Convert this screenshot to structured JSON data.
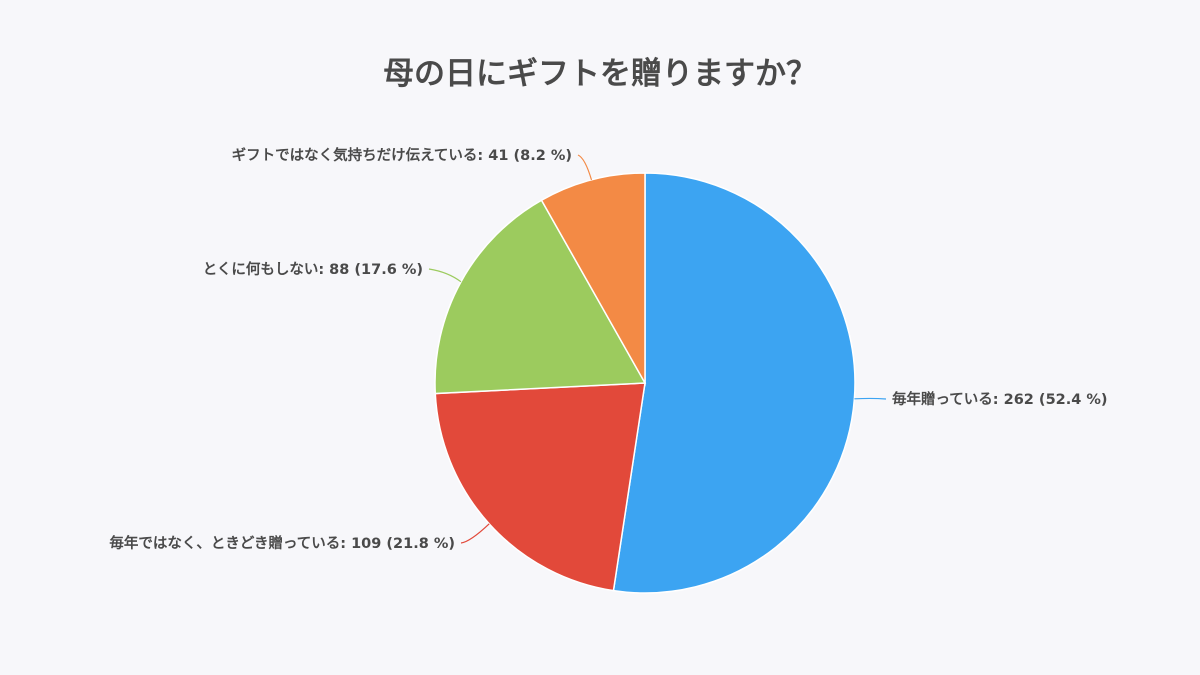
{
  "chart_data": {
    "type": "pie",
    "title": "母の日にギフトを贈りますか？",
    "start_angle_deg": 0,
    "direction": "clockwise",
    "slices": [
      {
        "label": "毎年贈っている: 262 (52.4 %)",
        "category": "毎年贈っている",
        "value": 262,
        "percent": 52.4,
        "color": "#3ca4f2"
      },
      {
        "label": "毎年ではなく、ときどき贈っている: 109 (21.8 %)",
        "category": "毎年ではなく、ときどき贈っている",
        "value": 109,
        "percent": 21.8,
        "color": "#e2493a"
      },
      {
        "label": "とくに何もしない: 88 (17.6 %)",
        "category": "とくに何もしない",
        "value": 88,
        "percent": 17.6,
        "color": "#9ccb5e"
      },
      {
        "label": "ギフトではなく気持ちだけ伝えている: 41 (8.2 %)",
        "category": "ギフトではなく気持ちだけ伝えている",
        "value": 41,
        "percent": 8.2,
        "color": "#f38a45"
      }
    ]
  }
}
